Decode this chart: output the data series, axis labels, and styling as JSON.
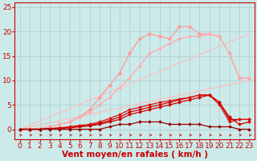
{
  "background_color": "#cceaea",
  "grid_color": "#aacccc",
  "xlabel": "Vent moyen/en rafales ( km/h )",
  "x_ticks": [
    0,
    1,
    2,
    3,
    4,
    5,
    6,
    7,
    8,
    9,
    10,
    11,
    12,
    13,
    14,
    15,
    16,
    17,
    18,
    19,
    20,
    21,
    22,
    23
  ],
  "ylim": [
    -2,
    26
  ],
  "xlim": [
    -0.5,
    23.5
  ],
  "y_ticks": [
    0,
    5,
    10,
    15,
    20,
    25
  ],
  "ytick_labels": [
    "0",
    "5",
    "10",
    "15",
    "20",
    "25"
  ],
  "lines": [
    {
      "x": [
        0,
        23
      ],
      "y": [
        0,
        10.0
      ],
      "color": "#ffbbbb",
      "marker": "None",
      "markersize": 0,
      "linewidth": 0.8,
      "linestyle": "-"
    },
    {
      "x": [
        0,
        23
      ],
      "y": [
        0,
        19.5
      ],
      "color": "#ffbbbb",
      "marker": "None",
      "markersize": 0,
      "linewidth": 0.8,
      "linestyle": "-"
    },
    {
      "x": [
        0,
        1,
        2,
        3,
        4,
        5,
        6,
        7,
        8,
        9,
        10,
        11,
        12,
        13,
        14,
        15,
        16,
        17,
        18,
        19,
        20,
        21,
        22,
        23
      ],
      "y": [
        0,
        0,
        0,
        0.5,
        1.0,
        1.5,
        2.5,
        4.0,
        6.5,
        9.0,
        11.5,
        15.5,
        18.5,
        19.5,
        19.0,
        18.5,
        21.0,
        21.0,
        19.5,
        19.5,
        19.0,
        15.5,
        10.5,
        10.5
      ],
      "color": "#ff9999",
      "marker": "D",
      "markersize": 2.5,
      "linewidth": 0.9,
      "linestyle": "-"
    },
    {
      "x": [
        0,
        1,
        2,
        3,
        4,
        5,
        6,
        7,
        8,
        9,
        10,
        11,
        12,
        13,
        14,
        15,
        16,
        17,
        18,
        19,
        20,
        21,
        22,
        23
      ],
      "y": [
        0,
        0,
        0.2,
        0.5,
        1.0,
        1.5,
        2.5,
        3.5,
        5.0,
        6.5,
        8.5,
        10.5,
        13.0,
        15.5,
        16.5,
        17.5,
        18.5,
        19.0,
        19.0,
        19.5,
        19.0,
        15.5,
        10.5,
        10.5
      ],
      "color": "#ffaaaa",
      "marker": "D",
      "markersize": 2.0,
      "linewidth": 0.9,
      "linestyle": "-"
    },
    {
      "x": [
        0,
        1,
        2,
        3,
        4,
        5,
        6,
        7,
        8,
        9,
        10,
        11,
        12,
        13,
        14,
        15,
        16,
        17,
        18,
        19,
        20,
        21,
        22,
        23
      ],
      "y": [
        0,
        0,
        0,
        0.1,
        0.2,
        0.4,
        0.6,
        0.8,
        1.2,
        1.8,
        2.5,
        3.5,
        4.0,
        4.5,
        5.0,
        5.5,
        6.0,
        6.5,
        7.0,
        7.0,
        5.5,
        2.0,
        2.0,
        2.0
      ],
      "color": "#cc0000",
      "marker": "D",
      "markersize": 2.0,
      "linewidth": 0.9,
      "linestyle": "-"
    },
    {
      "x": [
        0,
        1,
        2,
        3,
        4,
        5,
        6,
        7,
        8,
        9,
        10,
        11,
        12,
        13,
        14,
        15,
        16,
        17,
        18,
        19,
        20,
        21,
        22,
        23
      ],
      "y": [
        0,
        0,
        0,
        0.15,
        0.3,
        0.5,
        0.8,
        1.0,
        1.5,
        2.2,
        3.0,
        4.0,
        4.5,
        5.0,
        5.5,
        5.8,
        6.2,
        6.5,
        7.0,
        7.0,
        5.0,
        1.5,
        2.0,
        2.0
      ],
      "color": "#dd1111",
      "marker": "D",
      "markersize": 2.0,
      "linewidth": 0.9,
      "linestyle": "-"
    },
    {
      "x": [
        0,
        1,
        2,
        3,
        4,
        5,
        6,
        7,
        8,
        9,
        10,
        11,
        12,
        13,
        14,
        15,
        16,
        17,
        18,
        19,
        20,
        21,
        22,
        23
      ],
      "y": [
        0,
        0,
        0,
        0.1,
        0.2,
        0.3,
        0.5,
        0.7,
        1.0,
        1.5,
        2.0,
        3.0,
        3.5,
        4.0,
        4.5,
        5.0,
        5.5,
        6.0,
        6.5,
        7.0,
        5.5,
        2.5,
        1.0,
        1.5
      ],
      "color": "#cc0000",
      "marker": "D",
      "markersize": 2.0,
      "linewidth": 0.9,
      "linestyle": "-"
    },
    {
      "x": [
        0,
        1,
        2,
        3,
        4,
        5,
        6,
        7,
        8,
        9,
        10,
        11,
        12,
        13,
        14,
        15,
        16,
        17,
        18,
        19,
        20,
        21,
        22,
        23
      ],
      "y": [
        0,
        0,
        0,
        0,
        0,
        0,
        0,
        0,
        0,
        0.5,
        1.0,
        1.0,
        1.5,
        1.5,
        1.5,
        1.0,
        1.0,
        1.0,
        1.0,
        0.5,
        0.5,
        0.5,
        0,
        0
      ],
      "color": "#990000",
      "marker": "D",
      "markersize": 2.0,
      "linewidth": 0.9,
      "linestyle": "-"
    }
  ],
  "arrows": {
    "color": "#cc2222",
    "y_data": -1.2,
    "x_values": [
      0,
      1,
      2,
      3,
      4,
      5,
      6,
      7,
      8,
      9,
      10,
      11,
      12,
      13,
      14,
      15,
      16,
      17,
      18,
      19,
      20,
      21,
      22,
      23
    ]
  },
  "tick_color": "#cc0000",
  "label_color": "#cc0000",
  "tick_fontsize": 6.5,
  "label_fontsize": 7.5
}
